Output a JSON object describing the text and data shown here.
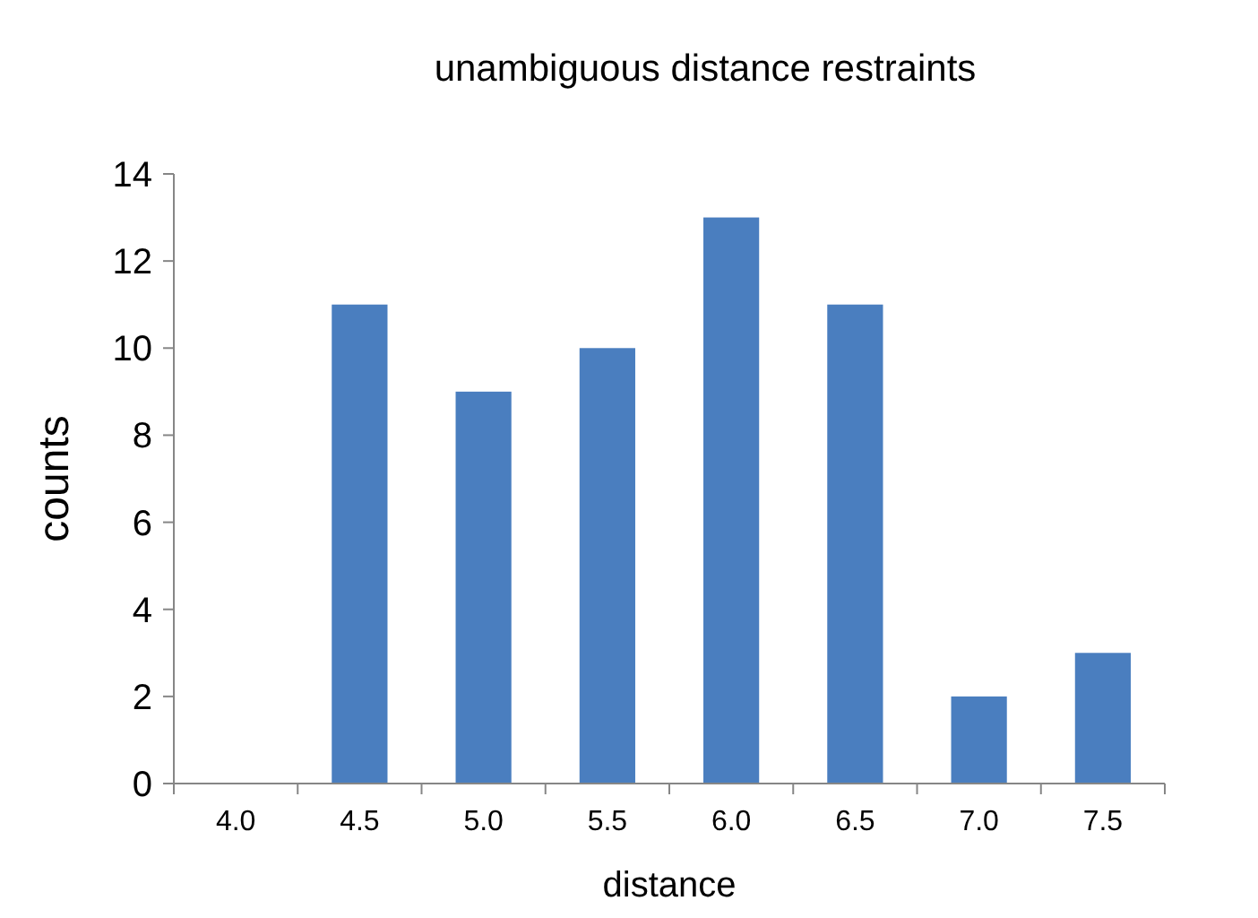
{
  "chart_data": {
    "type": "bar",
    "title": "unambiguous distance restraints",
    "xlabel": "distance",
    "ylabel": "counts",
    "categories": [
      "4.0",
      "4.5",
      "5.0",
      "5.5",
      "6.0",
      "6.5",
      "7.0",
      "7.5"
    ],
    "values": [
      0,
      11,
      9,
      10,
      13,
      11,
      2,
      3
    ],
    "color": "#4a7ebf",
    "ylim": [
      0,
      14
    ],
    "yticks": [
      0,
      2,
      4,
      6,
      8,
      10,
      12,
      14
    ],
    "grid": false
  }
}
